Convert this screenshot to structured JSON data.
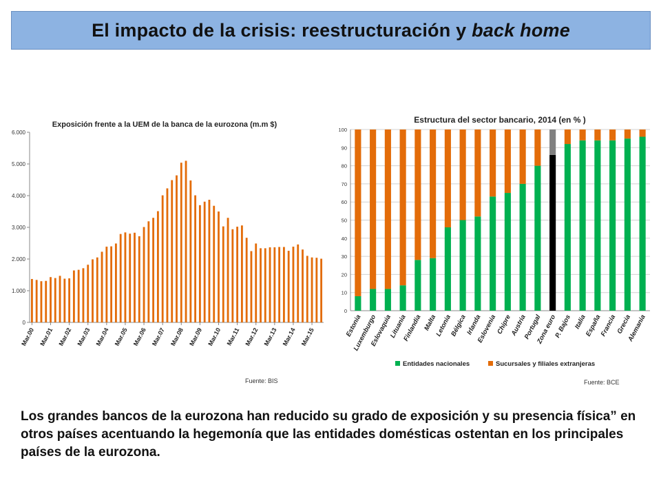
{
  "slide": {
    "title_main": "El impacto de la crisis: reestructuración y ",
    "title_italic": "back home",
    "caption": "Los grandes bancos de la eurozona han reducido su grado de exposición y su presencia física” en otros países acentuando la hegemonía que las entidades domésticas ostentan en los principales países de la eurozona.",
    "source_left": "Fuente: BIS",
    "source_right": "Fuente: BCE"
  },
  "colors": {
    "orange": "#e36c09",
    "green": "#00b050",
    "black": "#000000",
    "gray": "#808080",
    "title_bg": "#8db3e2"
  },
  "chart_data": [
    {
      "type": "bar",
      "title": "Exposición frente a la UEM de la banca de la eurozona (m.m $)",
      "xlabel": "",
      "ylabel": "",
      "ylim": [
        0,
        6000
      ],
      "yticks": [
        0,
        1000,
        2000,
        3000,
        4000,
        5000,
        6000
      ],
      "ytick_labels": [
        "0",
        "1.000",
        "2.000",
        "3.000",
        "4.000",
        "5.000",
        "6.000"
      ],
      "xtick_labels": [
        "Mar.00",
        "Mar.01",
        "Mar.02",
        "Mar.03",
        "Mar.04",
        "Mar.05",
        "Mar.06",
        "Mar.07",
        "Mar.08",
        "Mar.09",
        "Mar.10",
        "Mar.11",
        "Mar.12",
        "Mar.13",
        "Mar.14",
        "Mar.15"
      ],
      "grid": false,
      "legend": "none",
      "values": [
        1370,
        1340,
        1300,
        1310,
        1430,
        1400,
        1470,
        1380,
        1390,
        1640,
        1660,
        1710,
        1820,
        1990,
        2050,
        2230,
        2390,
        2400,
        2490,
        2790,
        2840,
        2800,
        2830,
        2720,
        3010,
        3190,
        3300,
        3510,
        4010,
        4230,
        4490,
        4640,
        5040,
        5100,
        4480,
        4010,
        3700,
        3810,
        3870,
        3680,
        3500,
        3030,
        3300,
        2940,
        3020,
        3060,
        2670,
        2250,
        2490,
        2340,
        2340,
        2370,
        2370,
        2380,
        2380,
        2260,
        2390,
        2460,
        2300,
        2100,
        2050,
        2040,
        2010
      ],
      "series_color": "#e36c09"
    },
    {
      "type": "bar",
      "stacked": true,
      "title": "Estructura del sector bancario, 2014 (en % )",
      "xlabel": "",
      "ylabel": "",
      "ylim": [
        0,
        100
      ],
      "yticks": [
        0,
        10,
        20,
        30,
        40,
        50,
        60,
        70,
        80,
        90,
        100
      ],
      "grid": true,
      "legend": "bottom",
      "categories": [
        "Estonia",
        "Luxemburgo",
        "Eslovaquia",
        "Lituania",
        "Finlandia",
        "Malta",
        "Letonia",
        "Bélgica",
        "Irlanda",
        "Eslovenia",
        "Chipre",
        "Austria",
        "Portugal",
        "Zona euro",
        "P. Bajos",
        "Italia",
        "España",
        "Francia",
        "Grecia",
        "Alemania"
      ],
      "series": [
        {
          "name": "Entidades nacionales",
          "values": [
            8,
            12,
            12,
            14,
            28,
            29,
            46,
            50,
            52,
            63,
            65,
            70,
            80,
            86,
            92,
            94,
            94,
            94,
            95,
            96
          ]
        },
        {
          "name": "Sucursales y filiales extranjeras",
          "values": [
            92,
            88,
            88,
            86,
            72,
            71,
            54,
            50,
            48,
            37,
            35,
            30,
            20,
            14,
            8,
            6,
            6,
            6,
            5,
            4
          ]
        }
      ],
      "highlight_category": "Zona euro"
    }
  ]
}
